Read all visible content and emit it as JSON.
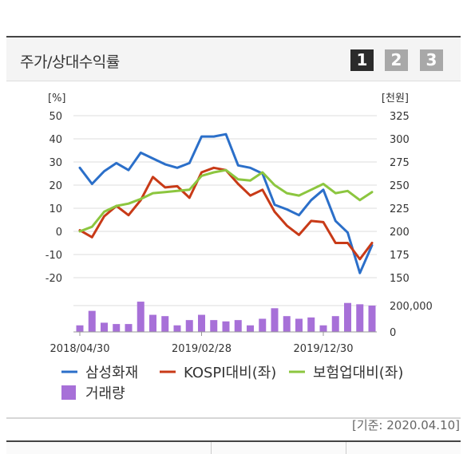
{
  "panel": {
    "title": "주가/상대수익률",
    "pages": [
      "1",
      "2",
      "3"
    ],
    "active_page": 0
  },
  "chart_data": {
    "type": "line",
    "left_axis": {
      "label": "[%]",
      "ticks": [
        50,
        40,
        30,
        20,
        10,
        0,
        -10,
        -20
      ],
      "range": [
        -20,
        50
      ]
    },
    "right_axis": {
      "label": "[천원]",
      "ticks": [
        325,
        300,
        275,
        250,
        225,
        200,
        175,
        150
      ],
      "range": [
        150,
        325
      ]
    },
    "volume_axis": {
      "ticks": [
        "200,000",
        "0"
      ],
      "max": 200000
    },
    "x_tick_labels": [
      "2018/04/30",
      "2019/02/28",
      "2019/12/30"
    ],
    "x_tick_index": [
      0,
      10,
      20
    ],
    "n_points": 25,
    "series": [
      {
        "name": "삼성화재",
        "color": "#2b6fc9",
        "values": [
          27.5,
          20.5,
          26,
          29.5,
          26.5,
          34,
          31.5,
          29,
          27.5,
          29.5,
          41,
          41,
          42,
          28.5,
          27.5,
          25,
          11.5,
          9.5,
          7,
          13.5,
          18,
          4.5,
          -0.5,
          -18,
          -6
        ]
      },
      {
        "name": "KOSPI대비(좌)",
        "color": "#c83a17",
        "values": [
          0.5,
          -2.5,
          6.5,
          11,
          7,
          13.5,
          23.5,
          19,
          19.5,
          14.5,
          25.5,
          27.5,
          26.5,
          20.5,
          15.5,
          18,
          8.5,
          2.5,
          -1.5,
          4.5,
          4,
          -5,
          -5,
          -12,
          -5
        ]
      },
      {
        "name": "보험업대비(좌)",
        "color": "#8cc63f",
        "values": [
          0,
          2,
          8.5,
          11,
          12,
          14,
          16.5,
          17,
          17.5,
          18,
          24,
          25.5,
          26.5,
          22.5,
          22,
          25.5,
          20,
          16.5,
          15.5,
          18,
          20.5,
          16.5,
          17.5,
          13.5,
          17
        ]
      }
    ],
    "volume": {
      "name": "거래량",
      "color": "#a770d8",
      "values": [
        50000,
        160000,
        70000,
        60000,
        60000,
        230000,
        130000,
        120000,
        50000,
        90000,
        130000,
        90000,
        80000,
        90000,
        50000,
        100000,
        180000,
        120000,
        100000,
        110000,
        50000,
        120000,
        220000,
        210000,
        200000
      ]
    }
  },
  "legend": [
    {
      "label": "삼성화재",
      "color": "#2b6fc9",
      "kind": "line"
    },
    {
      "label": "KOSPI대비(좌)",
      "color": "#c83a17",
      "kind": "line"
    },
    {
      "label": "보험업대비(좌)",
      "color": "#8cc63f",
      "kind": "line"
    },
    {
      "label": "거래량",
      "color": "#a770d8",
      "kind": "square"
    }
  ],
  "footer": {
    "date_stamp": "[기준: 2020.04.10]"
  }
}
